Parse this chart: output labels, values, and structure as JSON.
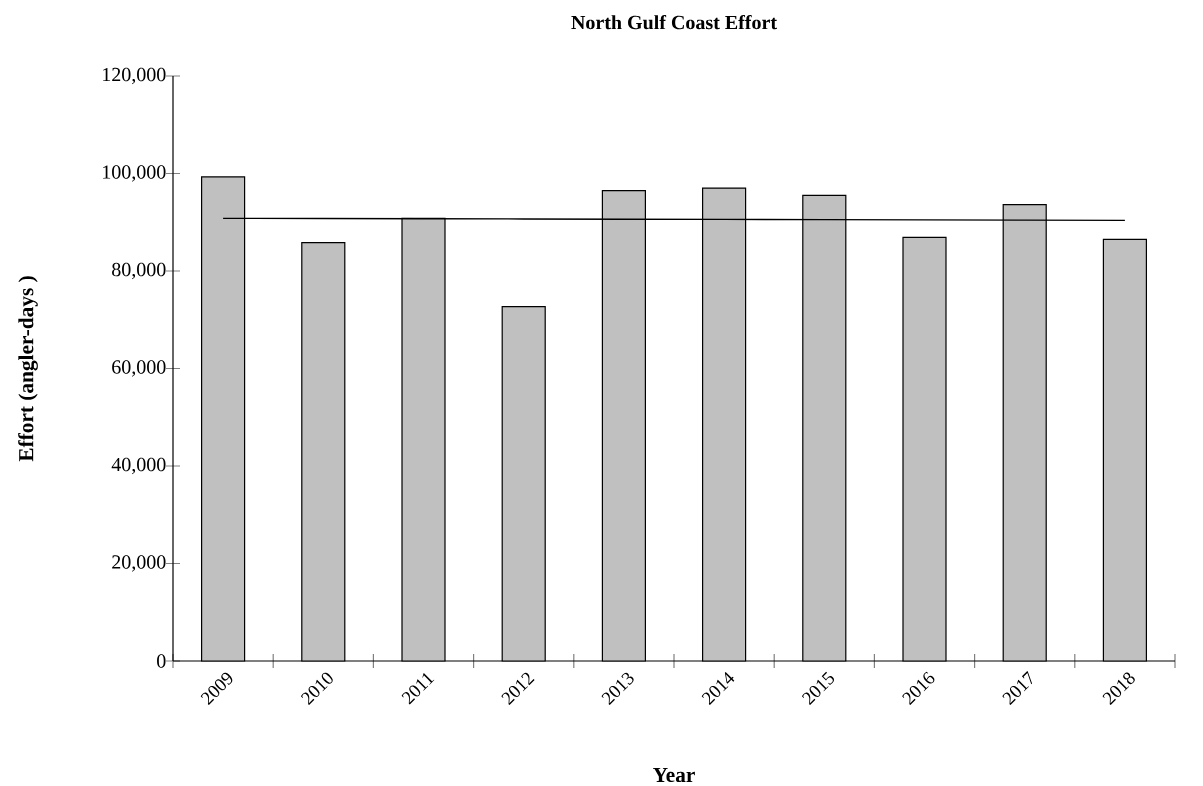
{
  "chart_data": {
    "type": "bar",
    "title": "North Gulf Coast Effort",
    "xlabel": "Year",
    "ylabel": "Effort (angler-days )",
    "categories": [
      "2009",
      "2010",
      "2011",
      "2012",
      "2013",
      "2014",
      "2015",
      "2016",
      "2017",
      "2018"
    ],
    "series": [
      {
        "color": "#c0c0c0",
        "values": [
          99300,
          85800,
          90800,
          72700,
          96500,
          97000,
          95500,
          86900,
          93600,
          86500
        ]
      },
      {
        "type": "line",
        "color": "#000000",
        "values": [
          90800,
          90760,
          90710,
          90670,
          90620,
          90580,
          90530,
          90490,
          90440,
          90400
        ]
      }
    ],
    "ylim": [
      0,
      120000
    ],
    "yticks": [
      0,
      {
        "value": 20000,
        "label": "20,000"
      },
      {
        "value": 40000,
        "label": "40,000"
      },
      {
        "value": 60000,
        "label": "60,000"
      },
      {
        "value": 80000,
        "label": "80,000"
      },
      {
        "value": 100000,
        "label": "100,000"
      },
      {
        "value": 120000,
        "label": "120,000"
      }
    ],
    "grid": false
  }
}
